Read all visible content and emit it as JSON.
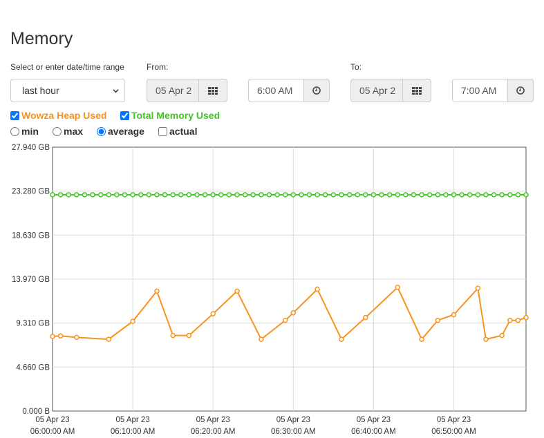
{
  "page": {
    "title": "Memory"
  },
  "range": {
    "label": "Select or enter date/time range",
    "selected": "last hour",
    "from_label": "From:",
    "from_date": "05 Apr 2",
    "from_time": "6:00 AM",
    "to_label": "To:",
    "to_date": "05 Apr 2",
    "to_time": "7:00 AM"
  },
  "series_toggles": [
    {
      "label": "Wowza Heap Used",
      "checked": true,
      "color": "#f7931e"
    },
    {
      "label": "Total Memory Used",
      "checked": true,
      "color": "#44c424"
    }
  ],
  "aggregation": {
    "options": [
      "min",
      "max",
      "average"
    ],
    "selected": "average",
    "actual_label": "actual",
    "actual_checked": false
  },
  "icons": {
    "calendar": "calendar-grid-icon",
    "clock": "clock-icon",
    "dropdown": "chevron-down-icon"
  },
  "chart_data": {
    "type": "line",
    "y_ticks": [
      "0.000 B",
      "4.660 GB",
      "9.310 GB",
      "13.970 GB",
      "18.630 GB",
      "23.280 GB",
      "27.940 GB"
    ],
    "ylim": [
      0,
      27.94
    ],
    "xlim_minutes": [
      0,
      59
    ],
    "x_ticks": [
      {
        "date": "05 Apr 23",
        "time": "06:00:00 AM",
        "minute": 0
      },
      {
        "date": "05 Apr 23",
        "time": "06:10:00 AM",
        "minute": 10
      },
      {
        "date": "05 Apr 23",
        "time": "06:20:00 AM",
        "minute": 20
      },
      {
        "date": "05 Apr 23",
        "time": "06:30:00 AM",
        "minute": 30
      },
      {
        "date": "05 Apr 23",
        "time": "06:40:00 AM",
        "minute": 40
      },
      {
        "date": "05 Apr 23",
        "time": "06:50:00 AM",
        "minute": 50
      }
    ],
    "grid": true,
    "series": [
      {
        "name": "Total Memory Used",
        "color": "#44c424",
        "x": [
          0,
          1,
          2,
          3,
          4,
          5,
          6,
          7,
          8,
          9,
          10,
          11,
          12,
          13,
          14,
          15,
          16,
          17,
          18,
          19,
          20,
          21,
          22,
          23,
          24,
          25,
          26,
          27,
          28,
          29,
          30,
          31,
          32,
          33,
          34,
          35,
          36,
          37,
          38,
          39,
          40,
          41,
          42,
          43,
          44,
          45,
          46,
          47,
          48,
          49,
          50,
          51,
          52,
          53,
          54,
          55,
          56,
          57,
          58,
          59
        ],
        "values": [
          22.9,
          22.9,
          22.9,
          22.9,
          22.9,
          22.9,
          22.9,
          22.9,
          22.9,
          22.9,
          22.9,
          22.9,
          22.9,
          22.9,
          22.9,
          22.9,
          22.9,
          22.9,
          22.9,
          22.9,
          22.9,
          22.9,
          22.9,
          22.9,
          22.9,
          22.9,
          22.9,
          22.9,
          22.9,
          22.9,
          22.9,
          22.9,
          22.9,
          22.9,
          22.9,
          22.9,
          22.9,
          22.9,
          22.9,
          22.9,
          22.9,
          22.9,
          22.9,
          22.9,
          22.9,
          22.9,
          22.9,
          22.9,
          22.9,
          22.9,
          22.9,
          22.9,
          22.9,
          22.9,
          22.9,
          22.9,
          22.9,
          22.9,
          22.9,
          22.9
        ]
      },
      {
        "name": "Wowza Heap Used",
        "color": "#f7931e",
        "x": [
          0,
          1,
          3,
          7,
          10,
          13,
          15,
          17,
          20,
          23,
          26,
          29,
          30,
          33,
          36,
          39,
          43,
          46,
          48,
          50,
          53,
          54,
          56,
          57,
          58,
          59
        ],
        "values": [
          7.9,
          7.95,
          7.8,
          7.6,
          9.5,
          12.7,
          8.0,
          8.0,
          10.3,
          12.7,
          7.6,
          9.6,
          10.4,
          12.9,
          7.6,
          9.9,
          13.1,
          7.6,
          9.6,
          10.2,
          13.0,
          7.6,
          8.0,
          9.6,
          9.6,
          9.9
        ]
      }
    ]
  }
}
